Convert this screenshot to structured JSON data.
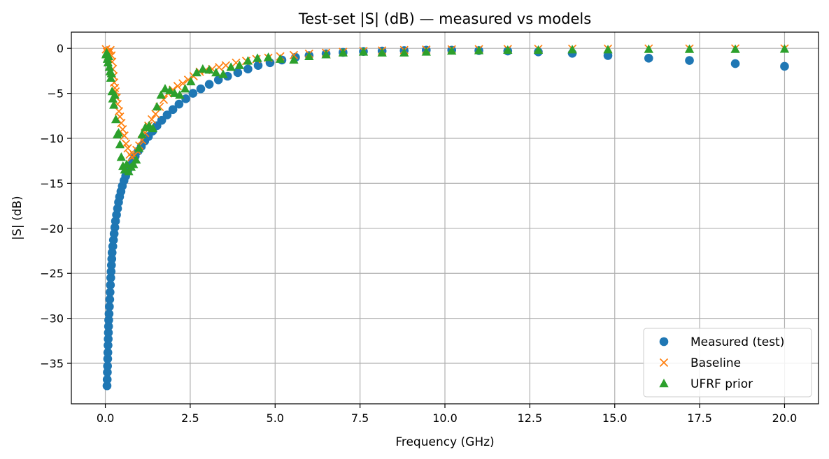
{
  "chart_data": {
    "type": "scatter",
    "title": "Test-set |S| (dB) — measured vs models",
    "xlabel": "Frequency (GHz)",
    "ylabel": "|S| (dB)",
    "xlim": [
      -1.0,
      21.0
    ],
    "ylim": [
      -39.5,
      1.8
    ],
    "xticks": [
      0,
      2.5,
      5,
      7.5,
      10,
      12.5,
      15,
      17.5,
      20
    ],
    "xtick_labels": [
      "0.0",
      "2.5",
      "5.0",
      "7.5",
      "10.0",
      "12.5",
      "15.0",
      "17.5",
      "20.0"
    ],
    "yticks": [
      0,
      -5,
      -10,
      -15,
      -20,
      -25,
      -30,
      -35
    ],
    "ytick_labels": [
      "0",
      "−5",
      "−10",
      "−15",
      "−20",
      "−25",
      "−30",
      "−35"
    ],
    "grid": true,
    "legend_position": "lower-right",
    "series": [
      {
        "name": "Measured (test)",
        "marker": "circle",
        "color": "#1f77b4",
        "points": [
          [
            0.05,
            -37.5
          ],
          [
            0.055,
            -36.8
          ],
          [
            0.06,
            -36.0
          ],
          [
            0.065,
            -35.3
          ],
          [
            0.07,
            -34.5
          ],
          [
            0.075,
            -33.8
          ],
          [
            0.08,
            -33.0
          ],
          [
            0.085,
            -32.3
          ],
          [
            0.09,
            -31.6
          ],
          [
            0.095,
            -30.9
          ],
          [
            0.1,
            -30.2
          ],
          [
            0.11,
            -29.5
          ],
          [
            0.12,
            -28.7
          ],
          [
            0.13,
            -27.9
          ],
          [
            0.14,
            -27.1
          ],
          [
            0.15,
            -26.3
          ],
          [
            0.16,
            -25.5
          ],
          [
            0.17,
            -24.8
          ],
          [
            0.18,
            -24.1
          ],
          [
            0.19,
            -23.4
          ],
          [
            0.2,
            -22.7
          ],
          [
            0.22,
            -22.0
          ],
          [
            0.24,
            -21.3
          ],
          [
            0.26,
            -20.6
          ],
          [
            0.28,
            -19.9
          ],
          [
            0.3,
            -19.2
          ],
          [
            0.33,
            -18.5
          ],
          [
            0.36,
            -17.8
          ],
          [
            0.39,
            -17.1
          ],
          [
            0.42,
            -16.5
          ],
          [
            0.46,
            -15.9
          ],
          [
            0.5,
            -15.3
          ],
          [
            0.55,
            -14.7
          ],
          [
            0.6,
            -14.2
          ],
          [
            0.66,
            -13.6
          ],
          [
            0.72,
            -13.1
          ],
          [
            0.8,
            -12.5
          ],
          [
            0.88,
            -12.0
          ],
          [
            0.97,
            -11.4
          ],
          [
            1.06,
            -10.9
          ],
          [
            1.16,
            -10.3
          ],
          [
            1.27,
            -9.8
          ],
          [
            1.39,
            -9.2
          ],
          [
            1.52,
            -8.6
          ],
          [
            1.66,
            -8.0
          ],
          [
            1.82,
            -7.4
          ],
          [
            1.99,
            -6.8
          ],
          [
            2.17,
            -6.2
          ],
          [
            2.37,
            -5.6
          ],
          [
            2.58,
            -5.0
          ],
          [
            2.81,
            -4.5
          ],
          [
            3.06,
            -4.0
          ],
          [
            3.33,
            -3.5
          ],
          [
            3.6,
            -3.1
          ],
          [
            3.9,
            -2.7
          ],
          [
            4.2,
            -2.3
          ],
          [
            4.5,
            -1.9
          ],
          [
            4.85,
            -1.6
          ],
          [
            5.2,
            -1.3
          ],
          [
            5.6,
            -1.0
          ],
          [
            6.0,
            -0.8
          ],
          [
            6.5,
            -0.6
          ],
          [
            7.0,
            -0.45
          ],
          [
            7.6,
            -0.35
          ],
          [
            8.15,
            -0.3
          ],
          [
            8.8,
            -0.25
          ],
          [
            9.45,
            -0.2
          ],
          [
            10.2,
            -0.2
          ],
          [
            11.0,
            -0.25
          ],
          [
            11.85,
            -0.3
          ],
          [
            12.75,
            -0.4
          ],
          [
            13.75,
            -0.55
          ],
          [
            14.8,
            -0.8
          ],
          [
            16.0,
            -1.1
          ],
          [
            17.2,
            -1.35
          ],
          [
            18.55,
            -1.7
          ],
          [
            20.0,
            -2.0
          ]
        ]
      },
      {
        "name": "Baseline",
        "marker": "x",
        "color": "#ff7f0e",
        "points": [
          [
            0.02,
            -0.1
          ],
          [
            0.05,
            -0.4
          ],
          [
            0.08,
            -0.9
          ],
          [
            0.1,
            -0.5
          ],
          [
            0.12,
            -0.3
          ],
          [
            0.15,
            -0.2
          ],
          [
            0.18,
            -0.8
          ],
          [
            0.2,
            -1.5
          ],
          [
            0.22,
            -2.3
          ],
          [
            0.24,
            -3.1
          ],
          [
            0.26,
            -3.8
          ],
          [
            0.28,
            -4.4
          ],
          [
            0.3,
            -4.8
          ],
          [
            0.33,
            -5.5
          ],
          [
            0.36,
            -6.2
          ],
          [
            0.4,
            -7.0
          ],
          [
            0.43,
            -7.6
          ],
          [
            0.47,
            -8.3
          ],
          [
            0.51,
            -9.0
          ],
          [
            0.56,
            -9.7
          ],
          [
            0.61,
            -10.6
          ],
          [
            0.66,
            -11.1
          ],
          [
            0.72,
            -11.8
          ],
          [
            0.78,
            -12.1
          ],
          [
            0.85,
            -11.9
          ],
          [
            0.92,
            -11.3
          ],
          [
            1.0,
            -10.8
          ],
          [
            1.08,
            -10.2
          ],
          [
            1.17,
            -9.4
          ],
          [
            1.27,
            -8.6
          ],
          [
            1.37,
            -7.9
          ],
          [
            1.48,
            -7.3
          ],
          [
            1.6,
            -6.5
          ],
          [
            1.72,
            -5.7
          ],
          [
            1.85,
            -5.0
          ],
          [
            1.99,
            -4.6
          ],
          [
            2.13,
            -4.2
          ],
          [
            2.28,
            -3.9
          ],
          [
            2.44,
            -3.5
          ],
          [
            2.6,
            -3.1
          ],
          [
            2.78,
            -2.6
          ],
          [
            2.96,
            -2.4
          ],
          [
            3.15,
            -2.3
          ],
          [
            3.35,
            -2.1
          ],
          [
            3.55,
            -1.9
          ],
          [
            3.85,
            -1.6
          ],
          [
            4.15,
            -1.4
          ],
          [
            4.45,
            -1.2
          ],
          [
            4.8,
            -1.05
          ],
          [
            5.15,
            -0.9
          ],
          [
            5.55,
            -0.75
          ],
          [
            6.0,
            -0.6
          ],
          [
            6.5,
            -0.5
          ],
          [
            7.0,
            -0.4
          ],
          [
            7.6,
            -0.3
          ],
          [
            8.15,
            -0.25
          ],
          [
            8.8,
            -0.2
          ],
          [
            9.45,
            -0.15
          ],
          [
            10.2,
            -0.12
          ],
          [
            11.0,
            -0.1
          ],
          [
            11.85,
            -0.08
          ],
          [
            12.75,
            -0.06
          ],
          [
            13.75,
            -0.05
          ],
          [
            14.8,
            -0.04
          ],
          [
            16.0,
            -0.03
          ],
          [
            17.2,
            -0.03
          ],
          [
            18.55,
            -0.02
          ],
          [
            20.0,
            -0.02
          ]
        ]
      },
      {
        "name": "UFRF prior",
        "marker": "triangle",
        "color": "#2ca02c",
        "points": [
          [
            0.02,
            -0.7
          ],
          [
            0.04,
            -0.5
          ],
          [
            0.06,
            -1.2
          ],
          [
            0.08,
            -1.6
          ],
          [
            0.1,
            -0.9
          ],
          [
            0.12,
            -2.1
          ],
          [
            0.14,
            -2.6
          ],
          [
            0.16,
            -3.3
          ],
          [
            0.18,
            -2.8
          ],
          [
            0.2,
            -4.8
          ],
          [
            0.22,
            -5.6
          ],
          [
            0.25,
            -6.3
          ],
          [
            0.28,
            -5.2
          ],
          [
            0.31,
            -7.9
          ],
          [
            0.35,
            -9.6
          ],
          [
            0.39,
            -9.4
          ],
          [
            0.43,
            -10.7
          ],
          [
            0.47,
            -12.1
          ],
          [
            0.52,
            -13.1
          ],
          [
            0.57,
            -13.5
          ],
          [
            0.63,
            -12.9
          ],
          [
            0.69,
            -13.7
          ],
          [
            0.76,
            -13.2
          ],
          [
            0.83,
            -12.9
          ],
          [
            0.91,
            -12.4
          ],
          [
            0.99,
            -11.1
          ],
          [
            1.08,
            -9.6
          ],
          [
            1.18,
            -8.8
          ],
          [
            1.29,
            -8.6
          ],
          [
            1.4,
            -8.9
          ],
          [
            1.52,
            -6.5
          ],
          [
            1.64,
            -5.2
          ],
          [
            1.76,
            -4.5
          ],
          [
            1.9,
            -4.7
          ],
          [
            2.04,
            -5.0
          ],
          [
            2.19,
            -5.2
          ],
          [
            2.35,
            -4.5
          ],
          [
            2.52,
            -3.7
          ],
          [
            2.69,
            -2.7
          ],
          [
            2.87,
            -2.3
          ],
          [
            3.06,
            -2.4
          ],
          [
            3.26,
            -2.7
          ],
          [
            3.47,
            -2.9
          ],
          [
            3.7,
            -2.1
          ],
          [
            3.95,
            -1.9
          ],
          [
            4.2,
            -1.4
          ],
          [
            4.48,
            -1.1
          ],
          [
            4.8,
            -1.0
          ],
          [
            5.15,
            -1.2
          ],
          [
            5.55,
            -1.3
          ],
          [
            6.0,
            -0.9
          ],
          [
            6.5,
            -0.7
          ],
          [
            7.0,
            -0.5
          ],
          [
            7.6,
            -0.4
          ],
          [
            8.15,
            -0.5
          ],
          [
            8.8,
            -0.5
          ],
          [
            9.45,
            -0.4
          ],
          [
            10.2,
            -0.3
          ],
          [
            11.0,
            -0.25
          ],
          [
            11.85,
            -0.2
          ],
          [
            12.75,
            -0.2
          ],
          [
            13.75,
            -0.15
          ],
          [
            14.8,
            -0.15
          ],
          [
            16.0,
            -0.1
          ],
          [
            17.2,
            -0.1
          ],
          [
            18.55,
            -0.1
          ],
          [
            20.0,
            -0.08
          ]
        ]
      }
    ]
  }
}
